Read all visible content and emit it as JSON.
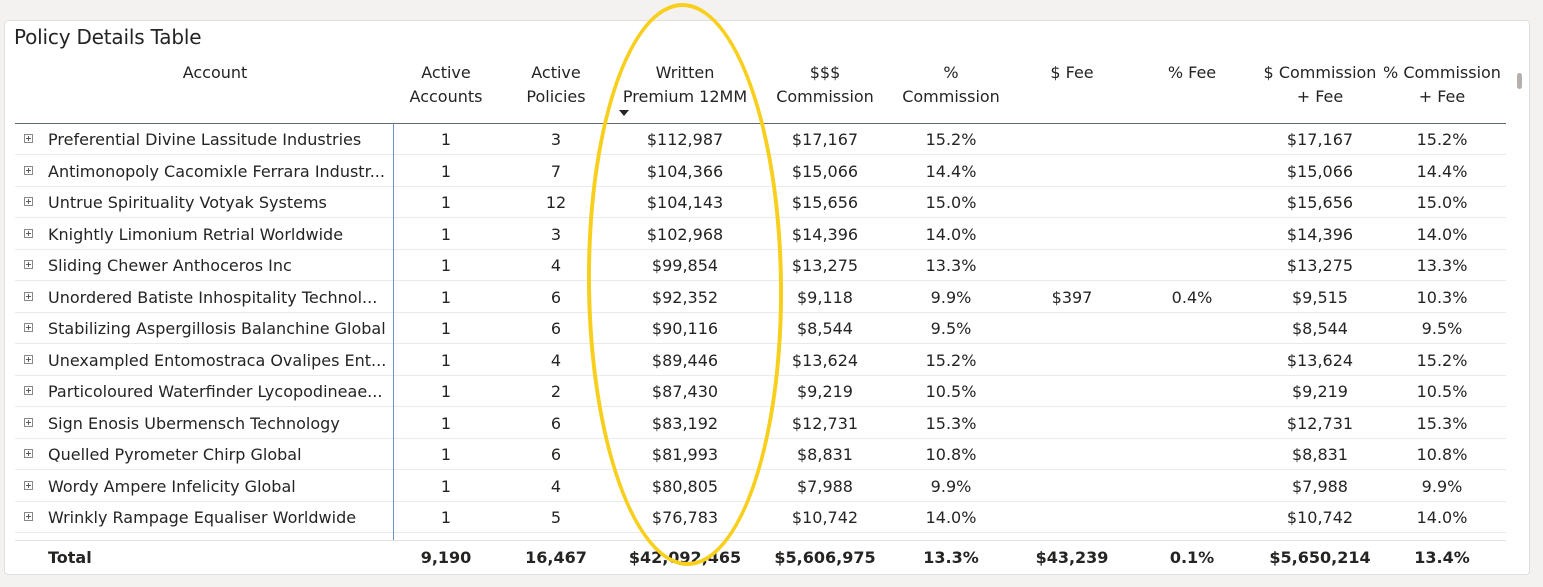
{
  "visual": {
    "title": "Policy Details Table"
  },
  "columns": [
    {
      "key": "account",
      "line1": "Account",
      "line2": ""
    },
    {
      "key": "active_accounts",
      "line1": "Active",
      "line2": "Accounts"
    },
    {
      "key": "active_policies",
      "line1": "Active",
      "line2": "Policies"
    },
    {
      "key": "written_premium",
      "line1": "Written",
      "line2": "Premium 12MM",
      "sorted": "descending"
    },
    {
      "key": "commission",
      "line1": "$$$",
      "line2": "Commission"
    },
    {
      "key": "pct_commission",
      "line1": "%",
      "line2": "Commission"
    },
    {
      "key": "fee",
      "line1": "$ Fee",
      "line2": ""
    },
    {
      "key": "pct_fee",
      "line1": "% Fee",
      "line2": ""
    },
    {
      "key": "commission_fee",
      "line1": "$ Commission",
      "line2": "+ Fee"
    },
    {
      "key": "pct_commission_fee",
      "line1": "% Commission",
      "line2": "+ Fee"
    }
  ],
  "rows": [
    {
      "account": "Preferential Divine Lassitude Industries",
      "active_accounts": "1",
      "active_policies": "3",
      "written_premium": "$112,987",
      "commission": "$17,167",
      "pct_commission": "15.2%",
      "fee": "",
      "pct_fee": "",
      "commission_fee": "$17,167",
      "pct_commission_fee": "15.2%"
    },
    {
      "account": "Antimonopoly Cacomixle Ferrara Industr...",
      "active_accounts": "1",
      "active_policies": "7",
      "written_premium": "$104,366",
      "commission": "$15,066",
      "pct_commission": "14.4%",
      "fee": "",
      "pct_fee": "",
      "commission_fee": "$15,066",
      "pct_commission_fee": "14.4%"
    },
    {
      "account": "Untrue Spirituality Votyak Systems",
      "active_accounts": "1",
      "active_policies": "12",
      "written_premium": "$104,143",
      "commission": "$15,656",
      "pct_commission": "15.0%",
      "fee": "",
      "pct_fee": "",
      "commission_fee": "$15,656",
      "pct_commission_fee": "15.0%"
    },
    {
      "account": "Knightly Limonium Retrial Worldwide",
      "active_accounts": "1",
      "active_policies": "3",
      "written_premium": "$102,968",
      "commission": "$14,396",
      "pct_commission": "14.0%",
      "fee": "",
      "pct_fee": "",
      "commission_fee": "$14,396",
      "pct_commission_fee": "14.0%"
    },
    {
      "account": "Sliding Chewer Anthoceros Inc",
      "active_accounts": "1",
      "active_policies": "4",
      "written_premium": "$99,854",
      "commission": "$13,275",
      "pct_commission": "13.3%",
      "fee": "",
      "pct_fee": "",
      "commission_fee": "$13,275",
      "pct_commission_fee": "13.3%"
    },
    {
      "account": "Unordered Batiste Inhospitality Technol...",
      "active_accounts": "1",
      "active_policies": "6",
      "written_premium": "$92,352",
      "commission": "$9,118",
      "pct_commission": "9.9%",
      "fee": "$397",
      "pct_fee": "0.4%",
      "commission_fee": "$9,515",
      "pct_commission_fee": "10.3%"
    },
    {
      "account": "Stabilizing Aspergillosis Balanchine Global",
      "active_accounts": "1",
      "active_policies": "6",
      "written_premium": "$90,116",
      "commission": "$8,544",
      "pct_commission": "9.5%",
      "fee": "",
      "pct_fee": "",
      "commission_fee": "$8,544",
      "pct_commission_fee": "9.5%"
    },
    {
      "account": "Unexampled Entomostraca Ovalipes Ent...",
      "active_accounts": "1",
      "active_policies": "4",
      "written_premium": "$89,446",
      "commission": "$13,624",
      "pct_commission": "15.2%",
      "fee": "",
      "pct_fee": "",
      "commission_fee": "$13,624",
      "pct_commission_fee": "15.2%"
    },
    {
      "account": "Particoloured Waterfinder Lycopodineae...",
      "active_accounts": "1",
      "active_policies": "2",
      "written_premium": "$87,430",
      "commission": "$9,219",
      "pct_commission": "10.5%",
      "fee": "",
      "pct_fee": "",
      "commission_fee": "$9,219",
      "pct_commission_fee": "10.5%"
    },
    {
      "account": "Sign Enosis Ubermensch Technology",
      "active_accounts": "1",
      "active_policies": "6",
      "written_premium": "$83,192",
      "commission": "$12,731",
      "pct_commission": "15.3%",
      "fee": "",
      "pct_fee": "",
      "commission_fee": "$12,731",
      "pct_commission_fee": "15.3%"
    },
    {
      "account": "Quelled Pyrometer Chirp Global",
      "active_accounts": "1",
      "active_policies": "6",
      "written_premium": "$81,993",
      "commission": "$8,831",
      "pct_commission": "10.8%",
      "fee": "",
      "pct_fee": "",
      "commission_fee": "$8,831",
      "pct_commission_fee": "10.8%"
    },
    {
      "account": "Wordy Ampere Infelicity Global",
      "active_accounts": "1",
      "active_policies": "4",
      "written_premium": "$80,805",
      "commission": "$7,988",
      "pct_commission": "9.9%",
      "fee": "",
      "pct_fee": "",
      "commission_fee": "$7,988",
      "pct_commission_fee": "9.9%"
    },
    {
      "account": "Wrinkly Rampage Equaliser Worldwide",
      "active_accounts": "1",
      "active_policies": "5",
      "written_premium": "$76,783",
      "commission": "$10,742",
      "pct_commission": "14.0%",
      "fee": "",
      "pct_fee": "",
      "commission_fee": "$10,742",
      "pct_commission_fee": "14.0%"
    }
  ],
  "total": {
    "label": "Total",
    "active_accounts": "9,190",
    "active_policies": "16,467",
    "written_premium": "$42,092,465",
    "commission": "$5,606,975",
    "pct_commission": "13.3%",
    "fee": "$43,239",
    "pct_fee": "0.1%",
    "commission_fee": "$5,650,214",
    "pct_commission_fee": "13.4%"
  },
  "colors": {
    "highlight": "#f8cf1c",
    "header_rule": "#5f6b6d",
    "column_separator": "#6b8fc7"
  },
  "icons": {
    "expand": "plus-box-icon",
    "sort": "sort-descending-icon"
  }
}
